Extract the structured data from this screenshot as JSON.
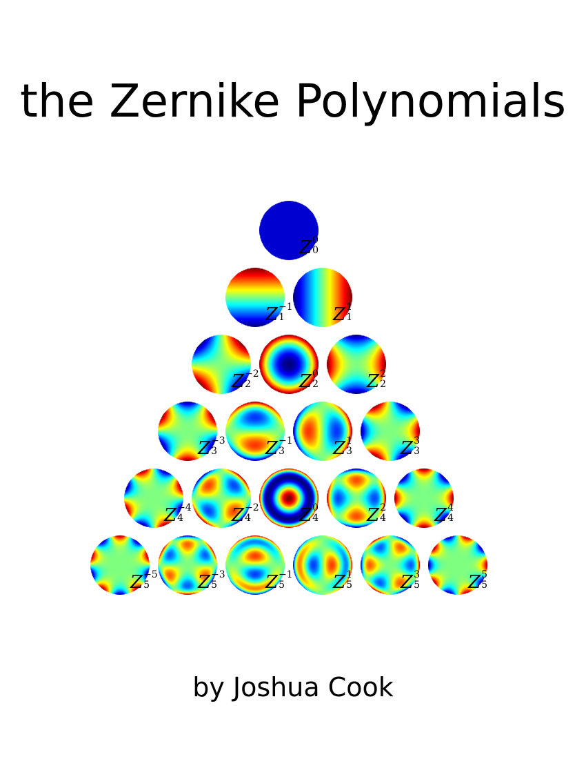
{
  "title": "the Zernike Polynomials",
  "author": "by Joshua Cook",
  "colormap": "jet",
  "polynomials": [
    {
      "n": 0,
      "m": 0,
      "symbol": "Z",
      "superscript": "0",
      "subscript": "0"
    },
    {
      "n": 1,
      "m": -1,
      "symbol": "Z",
      "superscript": "−1",
      "subscript": "1"
    },
    {
      "n": 1,
      "m": 1,
      "symbol": "Z",
      "superscript": "1",
      "subscript": "1"
    },
    {
      "n": 2,
      "m": -2,
      "symbol": "Z",
      "superscript": "−2",
      "subscript": "2"
    },
    {
      "n": 2,
      "m": 0,
      "symbol": "Z",
      "superscript": "0",
      "subscript": "2"
    },
    {
      "n": 2,
      "m": 2,
      "symbol": "Z",
      "superscript": "2",
      "subscript": "2"
    },
    {
      "n": 3,
      "m": -3,
      "symbol": "Z",
      "superscript": "−3",
      "subscript": "3"
    },
    {
      "n": 3,
      "m": -1,
      "symbol": "Z",
      "superscript": "−1",
      "subscript": "3"
    },
    {
      "n": 3,
      "m": 1,
      "symbol": "Z",
      "superscript": "1",
      "subscript": "3"
    },
    {
      "n": 3,
      "m": 3,
      "symbol": "Z",
      "superscript": "3",
      "subscript": "3"
    },
    {
      "n": 4,
      "m": -4,
      "symbol": "Z",
      "superscript": "−4",
      "subscript": "4"
    },
    {
      "n": 4,
      "m": -2,
      "symbol": "Z",
      "superscript": "−2",
      "subscript": "4"
    },
    {
      "n": 4,
      "m": 0,
      "symbol": "Z",
      "superscript": "0",
      "subscript": "4"
    },
    {
      "n": 4,
      "m": 2,
      "symbol": "Z",
      "superscript": "2",
      "subscript": "4"
    },
    {
      "n": 4,
      "m": 4,
      "symbol": "Z",
      "superscript": "4",
      "subscript": "4"
    },
    {
      "n": 5,
      "m": -5,
      "symbol": "Z",
      "superscript": "−5",
      "subscript": "5"
    },
    {
      "n": 5,
      "m": -3,
      "symbol": "Z",
      "superscript": "−3",
      "subscript": "5"
    },
    {
      "n": 5,
      "m": -1,
      "symbol": "Z",
      "superscript": "−1",
      "subscript": "5"
    },
    {
      "n": 5,
      "m": 1,
      "symbol": "Z",
      "superscript": "1",
      "subscript": "5"
    },
    {
      "n": 5,
      "m": 3,
      "symbol": "Z",
      "superscript": "3",
      "subscript": "5"
    },
    {
      "n": 5,
      "m": 5,
      "symbol": "Z",
      "superscript": "5",
      "subscript": "5"
    }
  ]
}
